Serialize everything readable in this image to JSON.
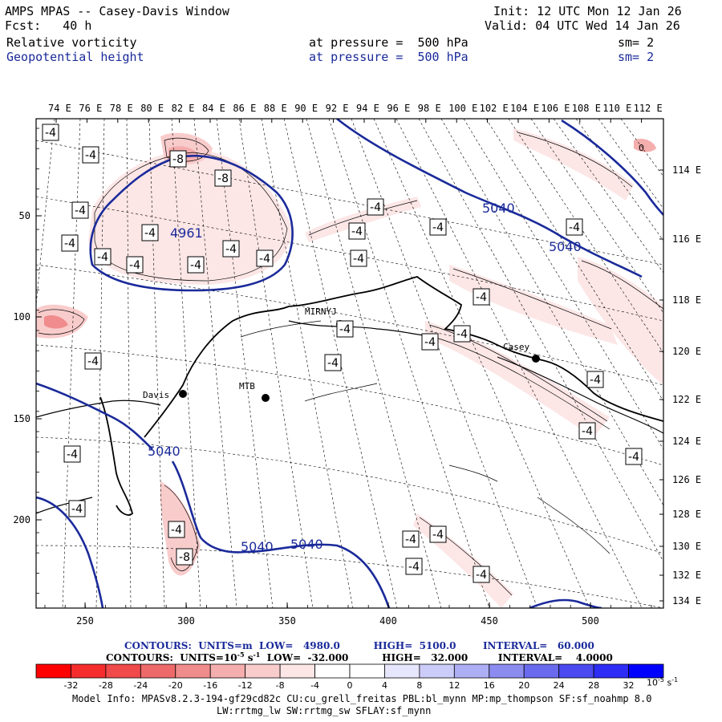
{
  "header": {
    "title": "AMPS MPAS -- Casey-Davis Window",
    "fcst": "Fcst:   40 h",
    "init": "Init: 12 UTC Mon 12 Jan 26",
    "valid": "Valid: 04 UTC Wed 14 Jan 26",
    "field1": {
      "name": "Relative vorticity",
      "level": "at pressure =  500 hPa",
      "sm": "sm= 2"
    },
    "field2": {
      "name": "Geopotential height",
      "level": "at pressure =  500 hPa",
      "sm": "sm= 2"
    }
  },
  "map": {
    "lon_top_labels": [
      "74 E",
      "76 E",
      "78 E",
      "80 E",
      "82 E",
      "84 E",
      "86 E",
      "88 E",
      "90 E",
      "92 E",
      "94 E",
      "96 E",
      "98 E",
      "100 E",
      "102 E",
      "104 E",
      "106 E",
      "108 E",
      "110 E",
      "112 E"
    ],
    "lon_right_labels": [
      "114 E",
      "116 E",
      "118 E",
      "120 E",
      "122 E",
      "124 E",
      "126 E",
      "128 E",
      "130 E",
      "132 E",
      "134 E"
    ],
    "y_axis_labels": [
      "50",
      "100",
      "150",
      "200"
    ],
    "x_axis_labels": [
      "250",
      "300",
      "350",
      "400",
      "450",
      "500"
    ],
    "stations": [
      {
        "name": "MIRNYJ"
      },
      {
        "name": "Casey"
      },
      {
        "name": "Davis"
      },
      {
        "name": "MTB"
      }
    ],
    "height_labels": [
      "5040",
      "5040",
      "5040",
      "5040",
      "5040",
      "4961"
    ],
    "vort_labels": [
      "-4",
      "-4",
      "-8",
      "-8",
      "-4",
      "-4",
      "-4",
      "-4",
      "-4",
      "-4",
      "-4",
      "-4",
      "-4",
      "-4",
      "-4",
      "-4",
      "-4",
      "-4",
      "-4",
      "-4",
      "-4",
      "-4",
      "-4",
      "-4",
      "-4",
      "-4",
      "-4",
      "-4",
      "-8",
      "-4",
      "-4",
      "-4",
      "-4",
      "-4"
    ],
    "high_label": "0"
  },
  "contours": {
    "line1": "CONTOURS:  UNITS=m  LOW=   4980.0          HIGH=  5100.0        INTERVAL=   60.000",
    "line2_pre": "CONTOURS:  UNITS=10",
    "line2_exp": "-5",
    "line2_mid": " s",
    "line2_exp2": "-1",
    "line2_post": "  LOW=  -32.000          HIGH=   32.000         INTERVAL=    4.0000"
  },
  "colorbar": {
    "labels": [
      "-32",
      "-28",
      "-24",
      "-20",
      "-16",
      "-12",
      "-8",
      "-4",
      "0",
      "4",
      "8",
      "12",
      "16",
      "20",
      "24",
      "28",
      "32"
    ],
    "unit": "10",
    "unit_exp": "-5",
    "unit_s": " s",
    "unit_exp2": "-1",
    "colors": [
      "#ff0000",
      "#f52d2d",
      "#f04a4a",
      "#ee6a6a",
      "#f08c8c",
      "#f5aeae",
      "#f9cccc",
      "#fce6e6",
      "#ffffff",
      "#ffffff",
      "#e6e6fc",
      "#ccccf9",
      "#aeaef5",
      "#8c8cf0",
      "#6a6aee",
      "#4a4af0",
      "#2d2df5",
      "#0000ff"
    ]
  },
  "model_info": {
    "line1": "Model Info: MPASv8.2.3-194-gf29cd82c CU:cu_grell_freitas PBL:bl_mynn MP:mp_thompson SF:sf_noahmp 8.0",
    "line2": "LW:rrtmg_lw SW:rrtmg_sw SFLAY:sf_mynn"
  }
}
